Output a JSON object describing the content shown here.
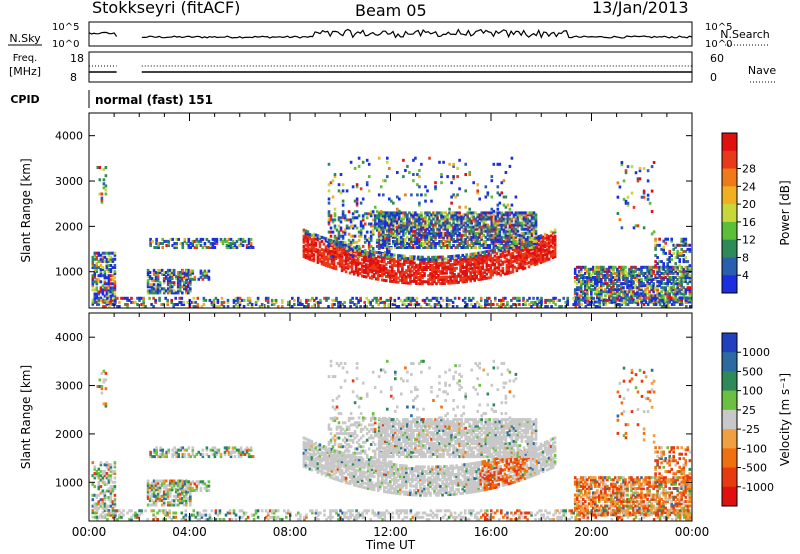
{
  "header": {
    "station": "Stokkseyri (fitACF)",
    "beam": "Beam 05",
    "date": "13/Jan/2013"
  },
  "strip": {
    "nsky_label": "N.Sky",
    "nsky_ticks": [
      "10^5",
      "10^0"
    ],
    "nsearch_label": "N.Search",
    "nsearch_ticks": [
      "10^5",
      "10^0"
    ],
    "freq_label_1": "Freq.",
    "freq_label_2": "[MHz]",
    "freq_ticks": [
      "18",
      "8"
    ],
    "nave_label": "Nave",
    "nave_ticks": [
      "60",
      "0"
    ],
    "cpid_label": "CPID",
    "cpid_value": "normal (fast) 151"
  },
  "chart_data": [
    {
      "type": "heatmap",
      "name": "power",
      "ylabel": "Slant Range [km]",
      "yticks": [
        "1000",
        "2000",
        "3000",
        "4000"
      ],
      "ylim": [
        200,
        4500
      ],
      "colorbar_label": "Power [dB]",
      "colorbar_ticks": [
        "4",
        "8",
        "12",
        "16",
        "20",
        "24",
        "28"
      ],
      "colors": [
        "#1c2fe0",
        "#2a5fb0",
        "#2f8a5a",
        "#5cbf3a",
        "#c8d83a",
        "#f0b020",
        "#f07a1a",
        "#e83a1a",
        "#e01010"
      ]
    },
    {
      "type": "heatmap",
      "name": "velocity",
      "ylabel": "Slant Range [km]",
      "yticks": [
        "1000",
        "2000",
        "3000",
        "4000"
      ],
      "ylim": [
        200,
        4500
      ],
      "xlabel": "Time UT",
      "xticks": [
        "00:00",
        "04:00",
        "08:00",
        "12:00",
        "16:00",
        "20:00",
        "00:00"
      ],
      "colorbar_label": "Velocity [m s⁻¹]",
      "colorbar_ticks": [
        "1000",
        "500",
        "100",
        "25",
        "-25",
        "-100",
        "-500",
        "-1000"
      ],
      "colors": [
        "#2040c0",
        "#2c6aa0",
        "#2f8a5a",
        "#6cc040",
        "#c8c8c8",
        "#f0a040",
        "#f07010",
        "#e83a10",
        "#e01010"
      ]
    }
  ]
}
